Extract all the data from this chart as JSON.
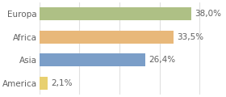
{
  "categories": [
    "Europa",
    "Africa",
    "Asia",
    "America"
  ],
  "values": [
    38.0,
    33.5,
    26.4,
    2.1
  ],
  "labels": [
    "38,0%",
    "33,5%",
    "26,4%",
    "2,1%"
  ],
  "bar_colors": [
    "#aec085",
    "#e8b87a",
    "#7b9ec8",
    "#e8d070"
  ],
  "background_color": "#ffffff",
  "xlim": [
    0,
    46
  ],
  "bar_height": 0.55,
  "label_fontsize": 7.5,
  "category_fontsize": 7.5,
  "grid_color": "#e0e0e0",
  "text_color": "#606060"
}
